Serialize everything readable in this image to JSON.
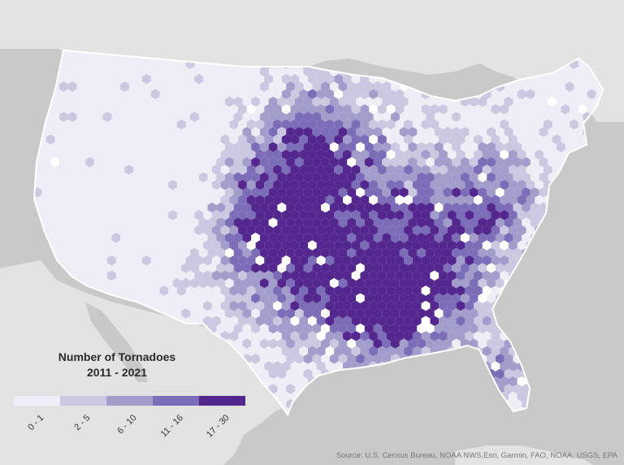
{
  "legend": {
    "title_line1": "Number of Tornadoes",
    "title_line2": "2011 - 2021",
    "classes": [
      {
        "label": "0 - 1",
        "color": "#efedf5"
      },
      {
        "label": "2 - 5",
        "color": "#cbc8e2"
      },
      {
        "label": "6 - 10",
        "color": "#a39dcc"
      },
      {
        "label": "11 - 16",
        "color": "#7b6db7"
      },
      {
        "label": "17 - 30",
        "color": "#54278f"
      }
    ]
  },
  "source": "Source: U.S. Census Bureau, NOAA NWS,Esri, Garmin, FAO, NOAA, USGS, EPA",
  "colors": {
    "water": "#c9c9c9",
    "land": "#e3e3e3",
    "us_base": "#efedf5",
    "borders": "#ffffff"
  }
}
